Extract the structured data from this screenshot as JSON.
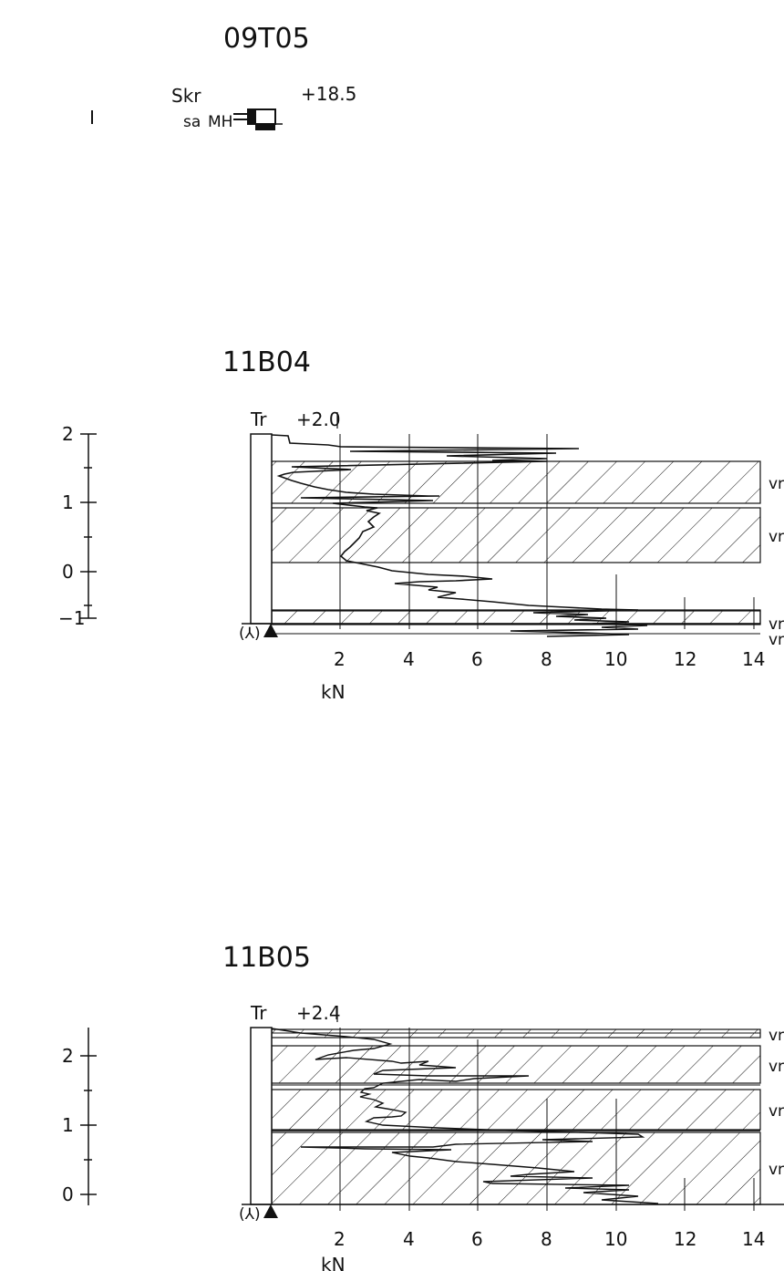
{
  "sheet": {
    "sections": [
      {
        "id": "09T05",
        "title": "09T05",
        "method": "Skr",
        "elevation": "+18.5",
        "sub_label": "sa",
        "symbol": "MH"
      },
      {
        "id": "11B04",
        "title": "11B04",
        "method": "Tr",
        "elevation": "+2.0",
        "marker": "(⅄)",
        "depth_ticks": [
          "2",
          "1",
          "0",
          "−1"
        ],
        "force_ticks": [
          "2",
          "4",
          "6",
          "8",
          "10",
          "12",
          "14"
        ],
        "force_unit": "kN",
        "layer_labels": [
          "vr",
          "vr",
          "vr",
          "vr"
        ]
      },
      {
        "id": "11B05",
        "title": "11B05",
        "method": "Tr",
        "elevation": "+2.4",
        "marker": "(⅄)",
        "depth_ticks": [
          "2",
          "1",
          "0"
        ],
        "force_ticks": [
          "2",
          "4",
          "6",
          "8",
          "10",
          "12",
          "14"
        ],
        "force_unit": "kN",
        "layer_labels": [
          "vr",
          "vr",
          "vr",
          "vr"
        ]
      }
    ]
  }
}
